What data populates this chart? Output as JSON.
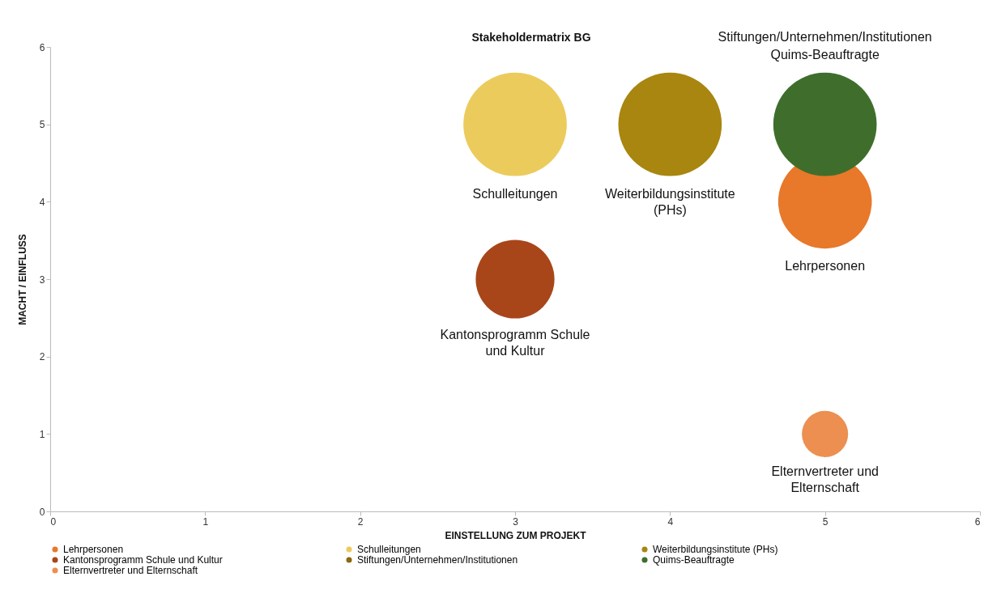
{
  "chart_data": {
    "type": "bubble",
    "title": "Stakeholdermatrix BG",
    "xlabel": "EINSTELLUNG ZUM PROJEKT",
    "ylabel": "MACHT / EINFLUSS",
    "xlim": [
      0,
      6
    ],
    "ylim": [
      0,
      6
    ],
    "xticks": [
      0,
      1,
      2,
      3,
      4,
      5,
      6
    ],
    "yticks": [
      0,
      1,
      2,
      3,
      4,
      5,
      6
    ],
    "grid": false,
    "legend": "bottom",
    "annotations": [
      "Stiftungen/Unternehmen/Institutionen"
    ],
    "series": [
      {
        "name": "Lehrpersonen",
        "color": "#e8782a",
        "x": [
          5
        ],
        "values": [
          4
        ],
        "sizes": [
          0.82
        ],
        "value_labels": [
          "Lehrpersonen"
        ]
      },
      {
        "name": "Schulleitungen",
        "color": "#ebcb5c",
        "x": [
          3
        ],
        "values": [
          5
        ],
        "sizes": [
          1
        ],
        "value_labels": [
          "Schulleitungen"
        ]
      },
      {
        "name": "Weiterbildungsinstitute (PHs)",
        "color": "#a8860f",
        "x": [
          4
        ],
        "values": [
          5
        ],
        "sizes": [
          1
        ],
        "value_labels": [
          "Weiterbildungsinstitute (PHs)"
        ]
      },
      {
        "name": "Kantonsprogramm Schule und Kultur",
        "color": "#a8461a",
        "x": [
          3
        ],
        "values": [
          3
        ],
        "sizes": [
          0.58
        ],
        "value_labels": [
          "Kantonsprogramm Schule und Kultur"
        ]
      },
      {
        "name": "Stiftungen/Unternehmen/Institutionen",
        "color": "#8a6a10",
        "values": [
          null
        ]
      },
      {
        "name": "Quims-Beauftragte",
        "color": "#3f6e2c",
        "x": [
          5
        ],
        "values": [
          5
        ],
        "sizes": [
          1
        ],
        "value_labels": [
          "Quims-Beauftragte"
        ]
      },
      {
        "name": "Elternvertreter  und Elternschaft",
        "color": "#ec8f50",
        "x": [
          5
        ],
        "values": [
          1
        ],
        "sizes": [
          0.2
        ],
        "value_labels": [
          "Elternvertreter  und Elternschaft"
        ]
      }
    ]
  }
}
